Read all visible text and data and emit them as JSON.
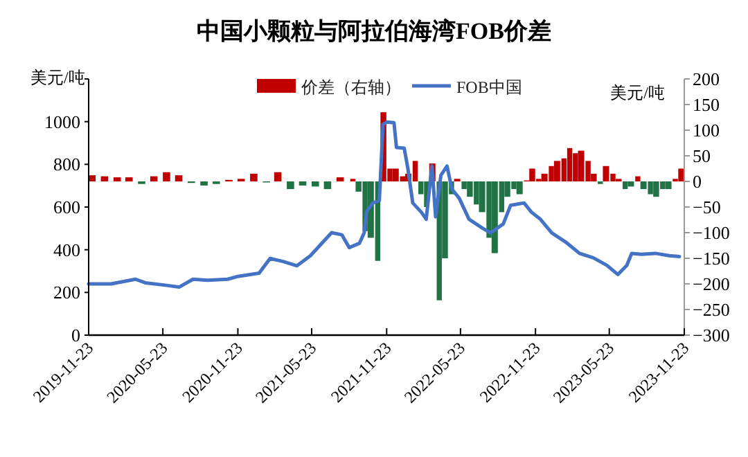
{
  "chart_data": {
    "type": "bar",
    "title": "中国小颗粒与阿拉伯海湾FOB价差",
    "ylabel": "美元/吨",
    "y2label": "美元/吨",
    "legend": "top",
    "xlim": [
      "2019-11-23",
      "2023-11-23"
    ],
    "xticks": [
      "2019-11-23",
      "2020-05-23",
      "2020-11-23",
      "2021-05-23",
      "2021-11-23",
      "2022-05-23",
      "2022-11-23",
      "2023-05-23",
      "2023-11-23"
    ],
    "ylim": [
      0,
      1200
    ],
    "yticks": [
      0,
      200,
      400,
      600,
      800,
      1000,
      {
        "value": 1200,
        "label": null
      }
    ],
    "y2lim": [
      -300,
      200
    ],
    "y2ticks": [
      -300,
      -250,
      -200,
      -150,
      -100,
      -50,
      0,
      50,
      100,
      150,
      200
    ],
    "series": [
      {
        "name": "价差（右轴）",
        "axis": "y2",
        "color": "#c00000",
        "x": [
          "2019-12-01",
          "2020-01-01",
          "2020-02-01",
          "2020-03-01",
          "2020-05-01",
          "2020-06-01",
          "2020-07-01",
          "2020-11-01",
          "2020-12-01",
          "2021-01-01",
          "2021-03-01",
          "2021-08-01",
          "2021-09-01",
          "2021-11-15",
          "2021-12-01",
          "2021-12-15",
          "2022-01-01",
          "2022-01-15",
          "2022-02-01",
          "2022-03-15",
          "2022-05-15",
          "2022-11-01",
          "2022-11-15",
          "2022-12-01",
          "2022-12-15",
          "2023-01-01",
          "2023-01-15",
          "2023-02-01",
          "2023-02-15",
          "2023-03-01",
          "2023-03-15",
          "2023-04-01",
          "2023-04-15",
          "2023-05-15",
          "2023-06-01",
          "2023-06-15",
          "2023-08-01",
          "2023-11-01",
          "2023-11-15"
        ],
        "values": [
          12,
          10,
          8,
          8,
          10,
          18,
          12,
          3,
          5,
          15,
          18,
          8,
          5,
          135,
          25,
          25,
          10,
          15,
          40,
          35,
          5,
          2,
          25,
          5,
          15,
          30,
          40,
          45,
          65,
          55,
          60,
          40,
          15,
          30,
          15,
          5,
          10,
          5,
          25
        ]
      },
      {
        "axis": "y2",
        "color": "#217346",
        "x": [
          "2020-04-01",
          "2020-08-01",
          "2020-09-01",
          "2020-10-01",
          "2021-02-01",
          "2021-04-01",
          "2021-05-01",
          "2021-06-01",
          "2021-07-01",
          "2021-09-15",
          "2021-10-01",
          "2021-10-15",
          "2021-11-01",
          "2022-02-15",
          "2022-03-01",
          "2022-04-01",
          "2022-04-15",
          "2022-05-01",
          "2022-06-01",
          "2022-06-15",
          "2022-07-01",
          "2022-07-15",
          "2022-08-01",
          "2022-08-15",
          "2022-09-01",
          "2022-09-15",
          "2022-10-01",
          "2022-10-15",
          "2023-05-01",
          "2023-07-01",
          "2023-07-15",
          "2023-08-15",
          "2023-09-01",
          "2023-09-15",
          "2023-10-01",
          "2023-10-15"
        ],
        "values": [
          -5,
          -3,
          -8,
          -5,
          -2,
          -15,
          -8,
          -10,
          -15,
          -20,
          -97,
          -110,
          -155,
          -25,
          -50,
          -232,
          -150,
          -25,
          -15,
          -30,
          -45,
          -60,
          -110,
          -140,
          -60,
          -30,
          -15,
          -25,
          -5,
          -15,
          -10,
          -15,
          -25,
          -30,
          -15,
          -15
        ]
      },
      {
        "name": "FOB中国",
        "type": "line",
        "color": "#4472c4",
        "x": [
          "2019-11-23",
          "2020-01-17",
          "2020-03-17",
          "2020-04-10",
          "2020-05-29",
          "2020-07-02",
          "2020-08-05",
          "2020-09-10",
          "2020-10-29",
          "2020-11-23",
          "2021-01-14",
          "2021-02-10",
          "2021-03-14",
          "2021-04-17",
          "2021-05-20",
          "2021-06-14",
          "2021-07-11",
          "2021-08-05",
          "2021-08-23",
          "2021-09-17",
          "2021-09-29",
          "2021-10-05",
          "2021-10-20",
          "2021-11-05",
          "2021-11-14",
          "2021-11-23",
          "2021-12-11",
          "2021-12-17",
          "2022-01-05",
          "2022-01-14",
          "2022-01-26",
          "2022-02-16",
          "2022-02-28",
          "2022-03-14",
          "2022-03-23",
          "2022-04-05",
          "2022-04-20",
          "2022-05-02",
          "2022-05-20",
          "2022-06-13",
          "2022-07-17",
          "2022-08-05",
          "2022-09-05",
          "2022-09-23",
          "2022-10-26",
          "2022-11-13",
          "2022-12-05",
          "2023-01-02",
          "2023-02-05",
          "2023-03-11",
          "2023-04-14",
          "2023-05-17",
          "2023-06-13",
          "2023-07-05",
          "2023-07-17",
          "2023-08-10",
          "2023-09-13",
          "2023-10-17",
          "2023-11-11"
        ],
        "values": [
          240,
          240,
          262,
          245,
          234,
          225,
          262,
          257,
          262,
          275,
          290,
          359,
          345,
          325,
          372,
          424,
          480,
          470,
          410,
          430,
          480,
          580,
          619,
          630,
          987,
          998,
          995,
          879,
          876,
          781,
          619,
          576,
          543,
          792,
          554,
          749,
          792,
          684,
          641,
          543,
          500,
          479,
          521,
          608,
          619,
          576,
          543,
          479,
          436,
          383,
          362,
          327,
          284,
          327,
          383,
          379,
          383,
          372,
          368
        ]
      }
    ]
  }
}
